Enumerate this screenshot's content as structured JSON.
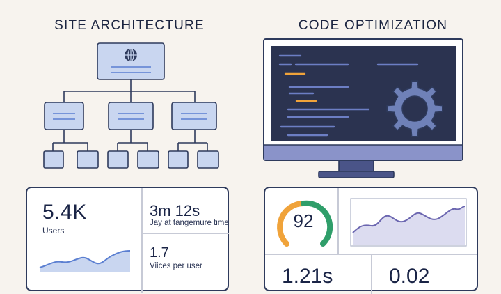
{
  "headings": {
    "left": "SITE ARCHITECTURE",
    "right": "CODE OPTIMIZATION"
  },
  "analytics": {
    "users_value": "5.4K",
    "users_label": "Users",
    "session_value": "3m 12s",
    "session_label": "Jay at tangemure time",
    "pages_value": "1.7",
    "pages_label": "Viices per user"
  },
  "performance": {
    "score": "92",
    "metric_a": "1.21s",
    "metric_b": "0.02"
  },
  "colors": {
    "background": "#f7f3ee",
    "outline": "#2e3a5c",
    "node_fill": "#c9d6f0",
    "accent_blue": "#5b7fd1",
    "accent_orange": "#f0a33a",
    "gauge_green": "#2f9e6a",
    "gear": "#6f81b8",
    "screen": "#2b3350",
    "chart_fill": "#dcdcf0",
    "chart_line": "#6b66b0"
  },
  "icons": {
    "globe": "globe-icon",
    "gear": "gear-icon"
  }
}
